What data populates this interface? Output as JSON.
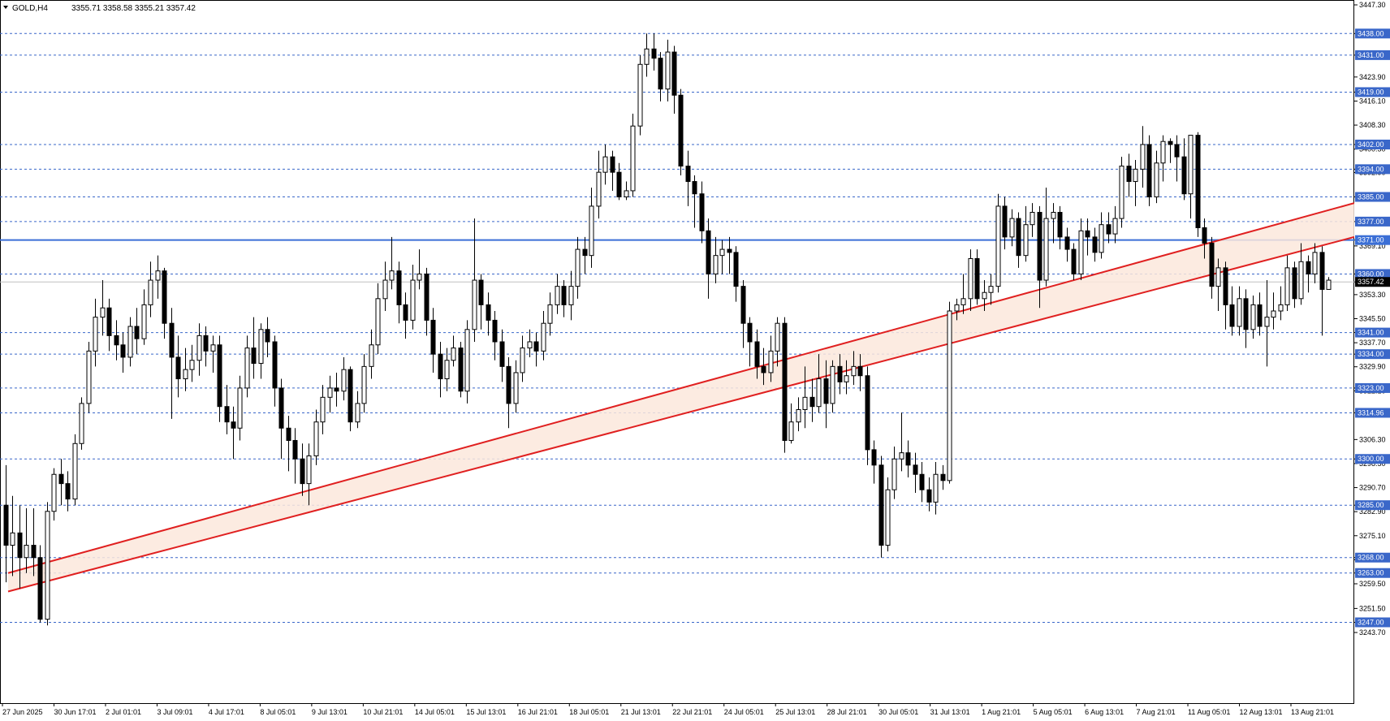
{
  "header": {
    "symbol": "GOLD,H4",
    "ohlc": "3355.71 3358.58 3355.21 3357.42"
  },
  "colors": {
    "up_fill": "#ffffff",
    "down_fill": "#000000",
    "candle_line": "#000000",
    "level_line": "#3a67c9",
    "level_label_bg": "#3a67c9",
    "key_level": "#3b6fd6",
    "channel_line": "#e02020",
    "channel_fill": "#fbe7dc",
    "price_line": "#c0c0c0",
    "price_label_bg": "#000000"
  },
  "chart_data": {
    "type": "candlestick",
    "title": "GOLD,H4",
    "ylim": [
      3243.7,
      3447.3
    ],
    "y_ticks": [
      "3447.30",
      "3438.00",
      "3431.00",
      "3423.90",
      "3419.00",
      "3416.10",
      "3408.30",
      "3402.00",
      "3400.50",
      "3394.00",
      "3392.90",
      "3385.00",
      "3377.00",
      "3371.00",
      "3369.10",
      "3360.00",
      "3357.42",
      "3353.30",
      "3345.50",
      "3341.00",
      "3337.70",
      "3334.00",
      "3329.90",
      "3323.00",
      "3322.10",
      "3314.96",
      "3306.30",
      "3300.00",
      "3298.50",
      "3290.70",
      "3285.00",
      "3282.90",
      "3275.10",
      "3268.00",
      "3267.30",
      "3263.00",
      "3259.50",
      "3251.50",
      "3247.00",
      "3243.70"
    ],
    "x_labels": [
      "27 Jun 2025",
      "30 Jun 17:01",
      "2 Jul 01:01",
      "3 Jul 09:01",
      "4 Jul 17:01",
      "8 Jul 05:01",
      "9 Jul 13:01",
      "10 Jul 21:01",
      "14 Jul 05:01",
      "15 Jul 13:01",
      "16 Jul 21:01",
      "18 Jul 05:01",
      "21 Jul 13:01",
      "22 Jul 21:01",
      "24 Jul 05:01",
      "25 Jul 13:01",
      "28 Jul 21:01",
      "30 Jul 05:01",
      "31 Jul 13:01",
      "1 Aug 21:01",
      "5 Aug 05:01",
      "6 Aug 13:01",
      "7 Aug 21:01",
      "11 Aug 05:01",
      "12 Aug 13:01",
      "13 Aug 21:01"
    ],
    "current_price": 3357.42,
    "levels": [
      3438.0,
      3431.0,
      3419.0,
      3402.0,
      3394.0,
      3385.0,
      3377.0,
      3360.0,
      3341.0,
      3334.0,
      3323.0,
      3314.96,
      3300.0,
      3285.0,
      3268.0,
      3263.0,
      3247.0
    ],
    "level_labels": [
      "3438.00",
      "3431.00",
      "3419.00",
      "3402.00",
      "3394.00",
      "3385.00",
      "3377.00",
      "3360.00",
      "3341.00",
      "3334.00",
      "3323.00",
      "3314.96",
      "3300.00",
      "3285.00",
      "3268.00",
      "3263.00",
      "3247.00"
    ],
    "key_level": 3371.0,
    "key_level_label": "3371.00",
    "current_price_label": "3357.42",
    "channel": {
      "upper_start": 3263.0,
      "upper_end": 3383.0,
      "lower_start": 3257.0,
      "lower_end": 3372.0
    },
    "ohlc": [
      [
        3285,
        3272,
        3298,
        3260
      ],
      [
        3272,
        3276,
        3288,
        3262
      ],
      [
        3276,
        3268,
        3285,
        3258
      ],
      [
        3268,
        3272,
        3284,
        3263
      ],
      [
        3272,
        3268,
        3284,
        3262
      ],
      [
        3268,
        3248,
        3272,
        3247
      ],
      [
        3248,
        3283,
        3286,
        3246
      ],
      [
        3283,
        3295,
        3297,
        3280
      ],
      [
        3295,
        3292,
        3300,
        3285
      ],
      [
        3292,
        3287,
        3296,
        3283
      ],
      [
        3287,
        3305,
        3308,
        3285
      ],
      [
        3305,
        3318,
        3320,
        3303
      ],
      [
        3318,
        3335,
        3338,
        3315
      ],
      [
        3335,
        3346,
        3352,
        3330
      ],
      [
        3346,
        3349,
        3358,
        3340
      ],
      [
        3349,
        3340,
        3352,
        3335
      ],
      [
        3340,
        3337,
        3345,
        3332
      ],
      [
        3337,
        3333,
        3341,
        3328
      ],
      [
        3333,
        3343,
        3346,
        3330
      ],
      [
        3343,
        3339,
        3349,
        3334
      ],
      [
        3339,
        3350,
        3355,
        3337
      ],
      [
        3350,
        3358,
        3364,
        3346
      ],
      [
        3358,
        3361,
        3366,
        3352
      ],
      [
        3361,
        3344,
        3362,
        3339
      ],
      [
        3344,
        3333,
        3349,
        3313
      ],
      [
        3333,
        3326,
        3340,
        3320
      ],
      [
        3326,
        3329,
        3336,
        3322
      ],
      [
        3329,
        3332,
        3337,
        3325
      ],
      [
        3332,
        3340,
        3344,
        3327
      ],
      [
        3340,
        3335,
        3343,
        3330
      ],
      [
        3335,
        3337,
        3340,
        3328
      ],
      [
        3337,
        3317,
        3340,
        3312
      ],
      [
        3317,
        3312,
        3324,
        3308
      ],
      [
        3312,
        3310,
        3317,
        3300
      ],
      [
        3310,
        3323,
        3327,
        3306
      ],
      [
        3323,
        3336,
        3340,
        3320
      ],
      [
        3336,
        3331,
        3346,
        3326
      ],
      [
        3331,
        3342,
        3344,
        3326
      ],
      [
        3342,
        3338,
        3346,
        3333
      ],
      [
        3338,
        3323,
        3340,
        3317
      ],
      [
        3323,
        3310,
        3326,
        3300
      ],
      [
        3310,
        3306,
        3314,
        3296
      ],
      [
        3306,
        3300,
        3310,
        3292
      ],
      [
        3300,
        3292,
        3305,
        3288
      ],
      [
        3292,
        3301,
        3305,
        3285
      ],
      [
        3301,
        3312,
        3316,
        3298
      ],
      [
        3312,
        3320,
        3324,
        3308
      ],
      [
        3320,
        3323,
        3327,
        3315
      ],
      [
        3323,
        3322,
        3328,
        3317
      ],
      [
        3322,
        3329,
        3333,
        3319
      ],
      [
        3329,
        3312,
        3330,
        3309
      ],
      [
        3312,
        3318,
        3322,
        3310
      ],
      [
        3318,
        3330,
        3334,
        3315
      ],
      [
        3330,
        3337,
        3342,
        3326
      ],
      [
        3337,
        3352,
        3357,
        3334
      ],
      [
        3352,
        3358,
        3364,
        3348
      ],
      [
        3358,
        3361,
        3372,
        3355
      ],
      [
        3361,
        3350,
        3364,
        3344
      ],
      [
        3350,
        3345,
        3354,
        3339
      ],
      [
        3345,
        3358,
        3363,
        3342
      ],
      [
        3358,
        3360,
        3368,
        3355
      ],
      [
        3360,
        3345,
        3362,
        3340
      ],
      [
        3345,
        3334,
        3349,
        3328
      ],
      [
        3334,
        3326,
        3338,
        3320
      ],
      [
        3326,
        3332,
        3336,
        3322
      ],
      [
        3332,
        3336,
        3340,
        3330
      ],
      [
        3336,
        3322,
        3338,
        3320
      ],
      [
        3322,
        3342,
        3345,
        3318
      ],
      [
        3342,
        3358,
        3378,
        3338
      ],
      [
        3358,
        3350,
        3360,
        3342
      ],
      [
        3350,
        3345,
        3354,
        3340
      ],
      [
        3345,
        3338,
        3348,
        3332
      ],
      [
        3338,
        3330,
        3342,
        3325
      ],
      [
        3330,
        3318,
        3333,
        3310
      ],
      [
        3318,
        3328,
        3332,
        3315
      ],
      [
        3328,
        3336,
        3340,
        3325
      ],
      [
        3336,
        3338,
        3342,
        3333
      ],
      [
        3338,
        3335,
        3341,
        3330
      ],
      [
        3335,
        3344,
        3348,
        3332
      ],
      [
        3344,
        3350,
        3354,
        3340
      ],
      [
        3350,
        3356,
        3360,
        3347
      ],
      [
        3356,
        3350,
        3358,
        3346
      ],
      [
        3350,
        3356,
        3361,
        3345
      ],
      [
        3356,
        3368,
        3372,
        3352
      ],
      [
        3368,
        3366,
        3372,
        3360
      ],
      [
        3366,
        3382,
        3388,
        3362
      ],
      [
        3382,
        3393,
        3400,
        3378
      ],
      [
        3393,
        3398,
        3402,
        3389
      ],
      [
        3398,
        3393,
        3400,
        3387
      ],
      [
        3393,
        3385,
        3396,
        3384
      ],
      [
        3385,
        3387,
        3390,
        3384
      ],
      [
        3387,
        3408,
        3412,
        3385
      ],
      [
        3408,
        3428,
        3431,
        3405
      ],
      [
        3428,
        3433,
        3438,
        3424
      ],
      [
        3433,
        3430,
        3438,
        3426
      ],
      [
        3430,
        3420,
        3432,
        3416
      ],
      [
        3420,
        3432,
        3436,
        3416
      ],
      [
        3432,
        3418,
        3434,
        3412
      ],
      [
        3418,
        3395,
        3420,
        3392
      ],
      [
        3395,
        3390,
        3400,
        3382
      ],
      [
        3390,
        3386,
        3392,
        3375
      ],
      [
        3386,
        3374,
        3390,
        3370
      ],
      [
        3374,
        3360,
        3378,
        3352
      ],
      [
        3360,
        3366,
        3372,
        3357
      ],
      [
        3366,
        3368,
        3371,
        3360
      ],
      [
        3368,
        3367,
        3372,
        3360
      ],
      [
        3367,
        3356,
        3369,
        3351
      ],
      [
        3356,
        3344,
        3358,
        3336
      ],
      [
        3344,
        3338,
        3346,
        3330
      ],
      [
        3338,
        3330,
        3342,
        3326
      ],
      [
        3330,
        3328,
        3336,
        3324
      ],
      [
        3328,
        3335,
        3340,
        3325
      ],
      [
        3335,
        3344,
        3346,
        3330
      ],
      [
        3344,
        3306,
        3346,
        3302
      ],
      [
        3306,
        3312,
        3318,
        3305
      ],
      [
        3312,
        3316,
        3320,
        3309
      ],
      [
        3316,
        3320,
        3330,
        3310
      ],
      [
        3320,
        3317,
        3326,
        3312
      ],
      [
        3317,
        3326,
        3334,
        3315
      ],
      [
        3326,
        3318,
        3332,
        3310
      ],
      [
        3318,
        3330,
        3332,
        3315
      ],
      [
        3330,
        3325,
        3334,
        3321
      ],
      [
        3325,
        3327,
        3332,
        3321
      ],
      [
        3327,
        3330,
        3335,
        3324
      ],
      [
        3330,
        3327,
        3334,
        3322
      ],
      [
        3327,
        3303,
        3330,
        3298
      ],
      [
        3303,
        3298,
        3306,
        3292
      ],
      [
        3298,
        3272,
        3301,
        3268
      ],
      [
        3272,
        3290,
        3294,
        3270
      ],
      [
        3290,
        3300,
        3304,
        3287
      ],
      [
        3300,
        3302,
        3315,
        3296
      ],
      [
        3302,
        3298,
        3306,
        3294
      ],
      [
        3298,
        3295,
        3302,
        3289
      ],
      [
        3295,
        3290,
        3299,
        3286
      ],
      [
        3290,
        3286,
        3294,
        3283
      ],
      [
        3286,
        3295,
        3299,
        3282
      ],
      [
        3295,
        3293,
        3298,
        3290
      ],
      [
        3293,
        3348,
        3351,
        3292
      ],
      [
        3348,
        3350,
        3352,
        3345
      ],
      [
        3350,
        3352,
        3360,
        3347
      ],
      [
        3352,
        3365,
        3368,
        3348
      ],
      [
        3365,
        3352,
        3368,
        3350
      ],
      [
        3352,
        3354,
        3358,
        3348
      ],
      [
        3354,
        3356,
        3360,
        3350
      ],
      [
        3356,
        3382,
        3386,
        3354
      ],
      [
        3382,
        3372,
        3385,
        3368
      ],
      [
        3372,
        3378,
        3381,
        3369
      ],
      [
        3378,
        3366,
        3380,
        3362
      ],
      [
        3366,
        3376,
        3382,
        3364
      ],
      [
        3376,
        3380,
        3383,
        3372
      ],
      [
        3380,
        3358,
        3382,
        3349
      ],
      [
        3358,
        3378,
        3388,
        3356
      ],
      [
        3378,
        3380,
        3383,
        3370
      ],
      [
        3380,
        3372,
        3382,
        3368
      ],
      [
        3372,
        3368,
        3375,
        3364
      ],
      [
        3368,
        3360,
        3370,
        3358
      ],
      [
        3360,
        3374,
        3378,
        3358
      ],
      [
        3374,
        3372,
        3378,
        3366
      ],
      [
        3372,
        3367,
        3375,
        3364
      ],
      [
        3367,
        3376,
        3380,
        3365
      ],
      [
        3376,
        3373,
        3380,
        3370
      ],
      [
        3373,
        3378,
        3382,
        3370
      ],
      [
        3378,
        3395,
        3398,
        3375
      ],
      [
        3395,
        3390,
        3399,
        3385
      ],
      [
        3390,
        3394,
        3397,
        3382
      ],
      [
        3394,
        3402,
        3408,
        3388
      ],
      [
        3402,
        3385,
        3405,
        3382
      ],
      [
        3385,
        3396,
        3400,
        3383
      ],
      [
        3396,
        3403,
        3405,
        3390
      ],
      [
        3403,
        3402,
        3404,
        3396
      ],
      [
        3402,
        3398,
        3405,
        3390
      ],
      [
        3398,
        3386,
        3404,
        3384
      ],
      [
        3386,
        3405,
        3405,
        3378
      ],
      [
        3405,
        3375,
        3406,
        3372
      ],
      [
        3375,
        3370,
        3378,
        3365
      ],
      [
        3370,
        3356,
        3372,
        3352
      ],
      [
        3356,
        3362,
        3365,
        3348
      ],
      [
        3362,
        3350,
        3364,
        3342
      ],
      [
        3350,
        3343,
        3356,
        3340
      ],
      [
        3343,
        3352,
        3356,
        3340
      ],
      [
        3352,
        3342,
        3355,
        3336
      ],
      [
        3342,
        3350,
        3353,
        3339
      ],
      [
        3350,
        3343,
        3354,
        3340
      ],
      [
        3343,
        3346,
        3358,
        3330
      ],
      [
        3346,
        3348,
        3354,
        3342
      ],
      [
        3348,
        3350,
        3356,
        3345
      ],
      [
        3350,
        3362,
        3366,
        3348
      ],
      [
        3362,
        3352,
        3364,
        3349
      ],
      [
        3352,
        3364,
        3370,
        3350
      ],
      [
        3364,
        3360,
        3366,
        3354
      ],
      [
        3360,
        3367,
        3370,
        3357
      ],
      [
        3367,
        3355,
        3369,
        3340
      ],
      [
        3355,
        3358,
        3359,
        3355
      ]
    ]
  }
}
